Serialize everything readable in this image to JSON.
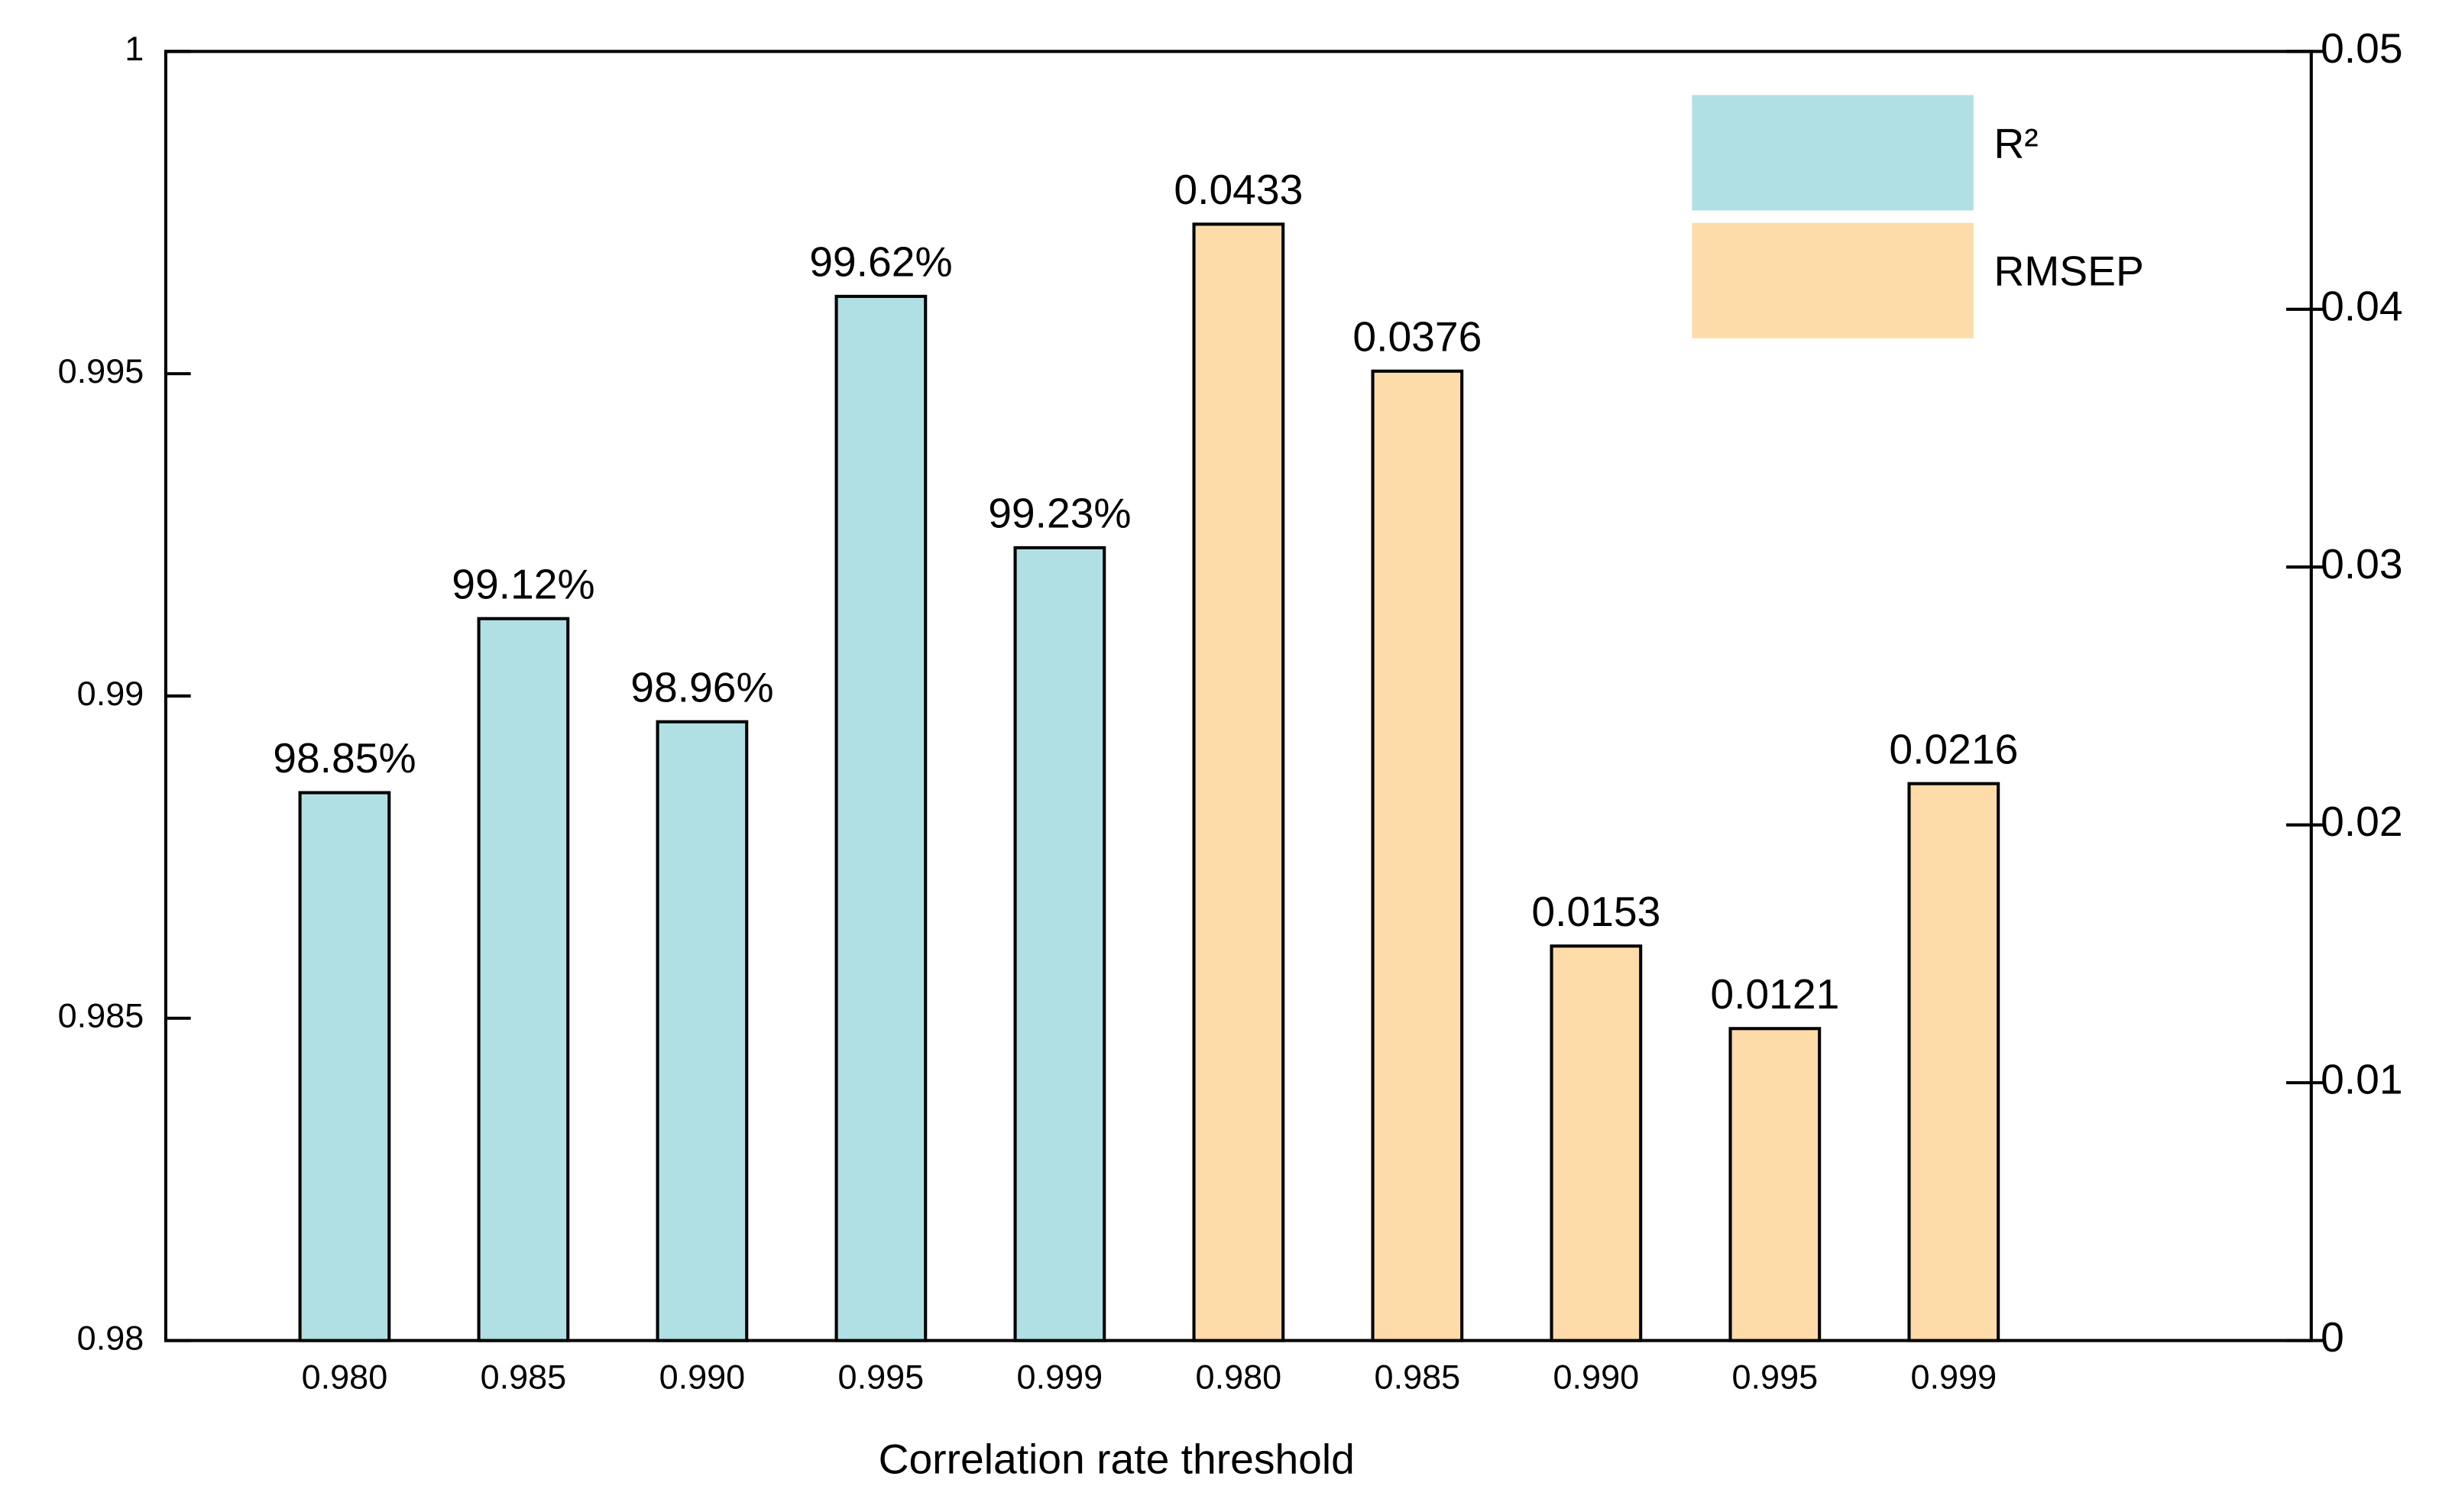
{
  "chart_data": {
    "type": "bar",
    "x_label": "Correlation rate threshold",
    "categories": [
      "0.980",
      "0.985",
      "0.990",
      "0.995",
      "0.999",
      "0.980",
      "0.985",
      "0.990",
      "0.995",
      "0.999"
    ],
    "series": [
      {
        "name": "R²",
        "color": "#b0e0e4",
        "axis": "y",
        "values": [
          0.9885,
          0.9912,
          0.9896,
          0.9962,
          0.9923,
          null,
          null,
          null,
          null,
          null
        ],
        "value_labels": [
          "98.85%",
          "99.12%",
          "98.96%",
          "99.62%",
          "99.23%",
          null,
          null,
          null,
          null,
          null
        ]
      },
      {
        "name": "RMSEP",
        "color": "#fddcaa",
        "axis": "y2",
        "values": [
          null,
          null,
          null,
          null,
          null,
          0.0433,
          0.0376,
          0.0153,
          0.0121,
          0.0216
        ]
      }
    ],
    "ylim": [
      0.98,
      1
    ],
    "yticks": [
      0.98,
      0.985,
      0.99,
      0.995,
      1
    ],
    "y2lim": [
      0,
      0.05
    ],
    "y2ticks": [
      0,
      0.01,
      0.02,
      0.03,
      0.04,
      0.05
    ],
    "legend": "upper right",
    "grid": false
  }
}
